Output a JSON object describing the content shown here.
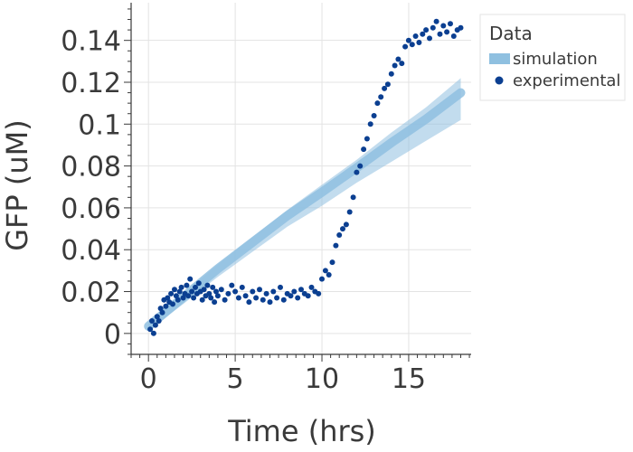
{
  "chart_data": {
    "type": "scatter",
    "xlabel": "Time (hrs)",
    "ylabel": "GFP (uM)",
    "xlim": [
      -1,
      18.6
    ],
    "ylim": [
      -0.01,
      0.158
    ],
    "x_ticks": [
      0,
      5,
      10,
      15
    ],
    "x_tick_labels": [
      "0",
      "5",
      "10",
      "15"
    ],
    "y_ticks": [
      0,
      0.02,
      0.04,
      0.06,
      0.08,
      0.1,
      0.12,
      0.14
    ],
    "y_tick_labels": [
      "0",
      "0.02",
      "0.04",
      "0.06",
      "0.08",
      "0.1",
      "0.12",
      "0.14"
    ],
    "grid": true,
    "legend": {
      "title": "Data",
      "placement": "right",
      "entries": [
        {
          "label": "simulation",
          "marker": "band"
        },
        {
          "label": "experimental",
          "marker": "circle"
        }
      ]
    },
    "colors": {
      "simulation": "#8fc0e0",
      "experimental": "#0b3f91",
      "grid": "#e3e3e3",
      "axis": "#3a3a3a"
    },
    "series": [
      {
        "name": "simulation",
        "type": "band",
        "x": [
          0,
          2,
          4,
          6,
          8,
          10,
          12,
          14,
          16,
          18
        ],
        "y_low": [
          0.0015,
          0.014,
          0.027,
          0.039,
          0.051,
          0.061,
          0.072,
          0.082,
          0.092,
          0.102
        ],
        "y_high": [
          0.0045,
          0.019,
          0.033,
          0.046,
          0.059,
          0.071,
          0.083,
          0.096,
          0.108,
          0.122
        ]
      },
      {
        "name": "experimental",
        "type": "scatter",
        "x": [
          0.1,
          0.2,
          0.3,
          0.4,
          0.5,
          0.6,
          0.7,
          0.8,
          0.9,
          1.0,
          1.1,
          1.2,
          1.3,
          1.4,
          1.5,
          1.6,
          1.7,
          1.8,
          1.9,
          2.0,
          2.1,
          2.2,
          2.3,
          2.4,
          2.5,
          2.6,
          2.7,
          2.8,
          2.9,
          3.0,
          3.1,
          3.2,
          3.3,
          3.4,
          3.5,
          3.6,
          3.7,
          3.8,
          3.9,
          4.0,
          4.2,
          4.4,
          4.6,
          4.8,
          5.0,
          5.2,
          5.4,
          5.6,
          5.8,
          6.0,
          6.2,
          6.4,
          6.6,
          6.8,
          7.0,
          7.2,
          7.4,
          7.6,
          7.8,
          8.0,
          8.2,
          8.4,
          8.6,
          8.8,
          9.0,
          9.2,
          9.4,
          9.6,
          9.8,
          10.0,
          10.2,
          10.4,
          10.6,
          10.8,
          11.0,
          11.2,
          11.4,
          11.6,
          11.8,
          12.0,
          12.2,
          12.4,
          12.6,
          12.8,
          13.0,
          13.2,
          13.4,
          13.6,
          13.8,
          14.0,
          14.2,
          14.4,
          14.6,
          14.8,
          15.0,
          15.2,
          15.4,
          15.6,
          15.8,
          16.0,
          16.2,
          16.4,
          16.6,
          16.8,
          17.0,
          17.2,
          17.4,
          17.6,
          17.8,
          18.0
        ],
        "y": [
          0.002,
          0.006,
          0.0,
          0.004,
          0.008,
          0.006,
          0.012,
          0.01,
          0.016,
          0.013,
          0.017,
          0.015,
          0.019,
          0.014,
          0.021,
          0.018,
          0.016,
          0.02,
          0.022,
          0.017,
          0.019,
          0.023,
          0.018,
          0.026,
          0.02,
          0.017,
          0.022,
          0.019,
          0.024,
          0.02,
          0.016,
          0.021,
          0.018,
          0.023,
          0.019,
          0.017,
          0.022,
          0.015,
          0.02,
          0.018,
          0.021,
          0.016,
          0.019,
          0.023,
          0.02,
          0.017,
          0.022,
          0.018,
          0.015,
          0.02,
          0.017,
          0.021,
          0.016,
          0.019,
          0.015,
          0.02,
          0.017,
          0.022,
          0.016,
          0.019,
          0.018,
          0.02,
          0.017,
          0.021,
          0.019,
          0.018,
          0.022,
          0.02,
          0.019,
          0.026,
          0.03,
          0.028,
          0.034,
          0.042,
          0.047,
          0.05,
          0.052,
          0.058,
          0.065,
          0.077,
          0.08,
          0.088,
          0.093,
          0.1,
          0.104,
          0.11,
          0.113,
          0.117,
          0.119,
          0.124,
          0.128,
          0.131,
          0.129,
          0.137,
          0.14,
          0.138,
          0.142,
          0.139,
          0.143,
          0.145,
          0.141,
          0.146,
          0.149,
          0.143,
          0.147,
          0.144,
          0.148,
          0.142,
          0.145,
          0.146
        ]
      }
    ]
  }
}
